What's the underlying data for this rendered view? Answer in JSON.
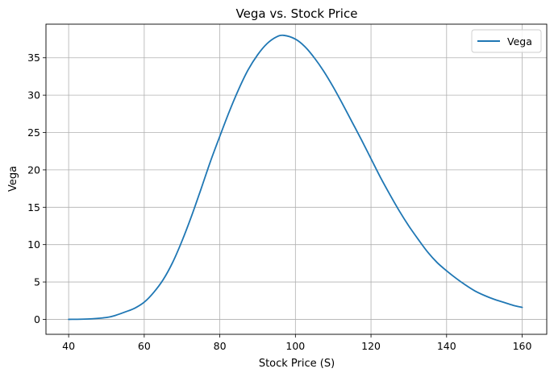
{
  "chart_data": {
    "type": "line",
    "title": "Vega vs. Stock Price",
    "xlabel": "Stock Price (S)",
    "ylabel": "Vega",
    "xlim": [
      34,
      166.5
    ],
    "ylim": [
      -2,
      39.5
    ],
    "xticks": [
      40,
      60,
      80,
      100,
      120,
      140,
      160
    ],
    "yticks": [
      0,
      5,
      10,
      15,
      20,
      25,
      30,
      35
    ],
    "grid": true,
    "legend": "upper right",
    "series": [
      {
        "name": "Vega",
        "color": "#1f77b4",
        "x": [
          40,
          45,
          50,
          52.5,
          55,
          57.5,
          60,
          62.5,
          65,
          67.5,
          70,
          72.5,
          75,
          77.5,
          80,
          82.5,
          85,
          87.5,
          90,
          92.5,
          95,
          97,
          100,
          102.5,
          105,
          107.5,
          110,
          112.5,
          115,
          117.5,
          120,
          122.5,
          125,
          127.5,
          130,
          132.5,
          135,
          137.5,
          140,
          142.5,
          145,
          147.5,
          150,
          152.5,
          155,
          157.5,
          160
        ],
        "y": [
          0.0,
          0.05,
          0.25,
          0.55,
          1.0,
          1.5,
          2.3,
          3.6,
          5.3,
          7.6,
          10.5,
          13.8,
          17.4,
          21.1,
          24.5,
          27.8,
          30.8,
          33.4,
          35.4,
          36.9,
          37.8,
          38.0,
          37.5,
          36.5,
          35.0,
          33.2,
          31.1,
          28.8,
          26.4,
          24.0,
          21.5,
          19.0,
          16.7,
          14.5,
          12.5,
          10.7,
          9.0,
          7.6,
          6.5,
          5.5,
          4.6,
          3.8,
          3.2,
          2.7,
          2.3,
          1.9,
          1.6
        ]
      }
    ]
  }
}
